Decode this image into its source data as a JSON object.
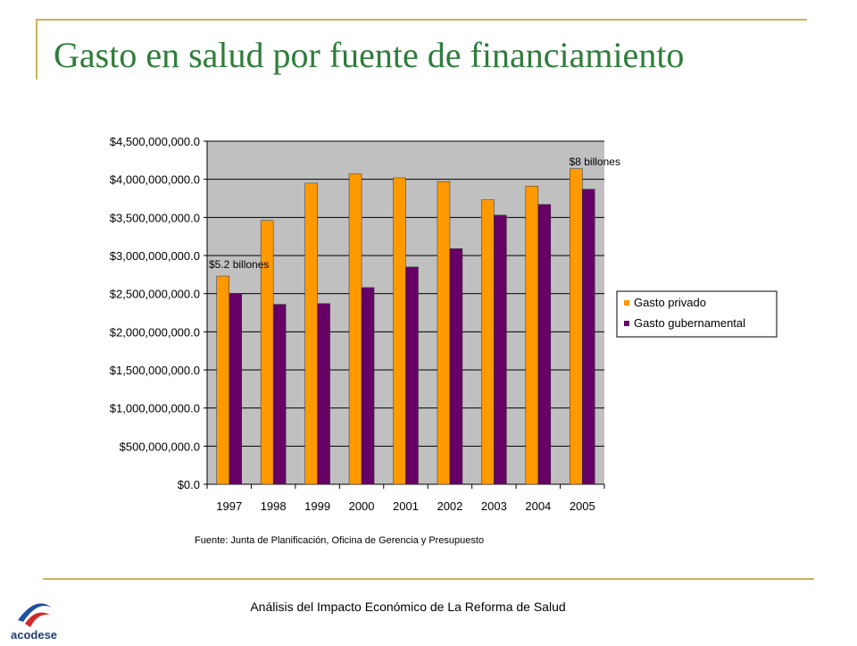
{
  "slide": {
    "title": "Gasto en salud por fuente de financiamiento",
    "source": "Fuente: Junta de Planificación, Oficina de Gerencia y Presupuesto",
    "footer": "Análisis del Impacto Económico de La Reforma de Salud",
    "logo_text": "acodese"
  },
  "colors": {
    "private": "#ff9900",
    "government": "#660066",
    "plot_bg": "#c0c0c0",
    "title": "#2e7d3a",
    "rule": "#c9b458"
  },
  "chart_data": {
    "type": "bar",
    "categories": [
      "1997",
      "1998",
      "1999",
      "2000",
      "2001",
      "2002",
      "2003",
      "2004",
      "2005"
    ],
    "series": [
      {
        "name": "Gasto privado",
        "values": [
          2730000000,
          3460000000,
          3950000000,
          4070000000,
          4020000000,
          3970000000,
          3730000000,
          3910000000,
          4140000000
        ]
      },
      {
        "name": "Gasto gubernamental",
        "values": [
          2500000000,
          2360000000,
          2370000000,
          2580000000,
          2850000000,
          3090000000,
          3530000000,
          3670000000,
          3870000000
        ]
      }
    ],
    "ylim": [
      0,
      4500000000
    ],
    "yticks": [
      0,
      500000000,
      1000000000,
      1500000000,
      2000000000,
      2500000000,
      3000000000,
      3500000000,
      4000000000,
      4500000000
    ],
    "ytick_labels": [
      "$0.0",
      "$500,000,000.0",
      "$1,000,000,000.0",
      "$1,500,000,000.0",
      "$2,000,000,000.0",
      "$2,500,000,000.0",
      "$3,000,000,000.0",
      "$3,500,000,000.0",
      "$4,000,000,000.0",
      "$4,500,000,000.0"
    ],
    "grid": true,
    "legend_position": "right",
    "annotations": [
      {
        "text": "$5.2 billones",
        "category": "1997",
        "value": 3000000000
      },
      {
        "text": "$8 billones",
        "category": "2005",
        "value": 4350000000
      }
    ],
    "title": "",
    "xlabel": "",
    "ylabel": ""
  }
}
